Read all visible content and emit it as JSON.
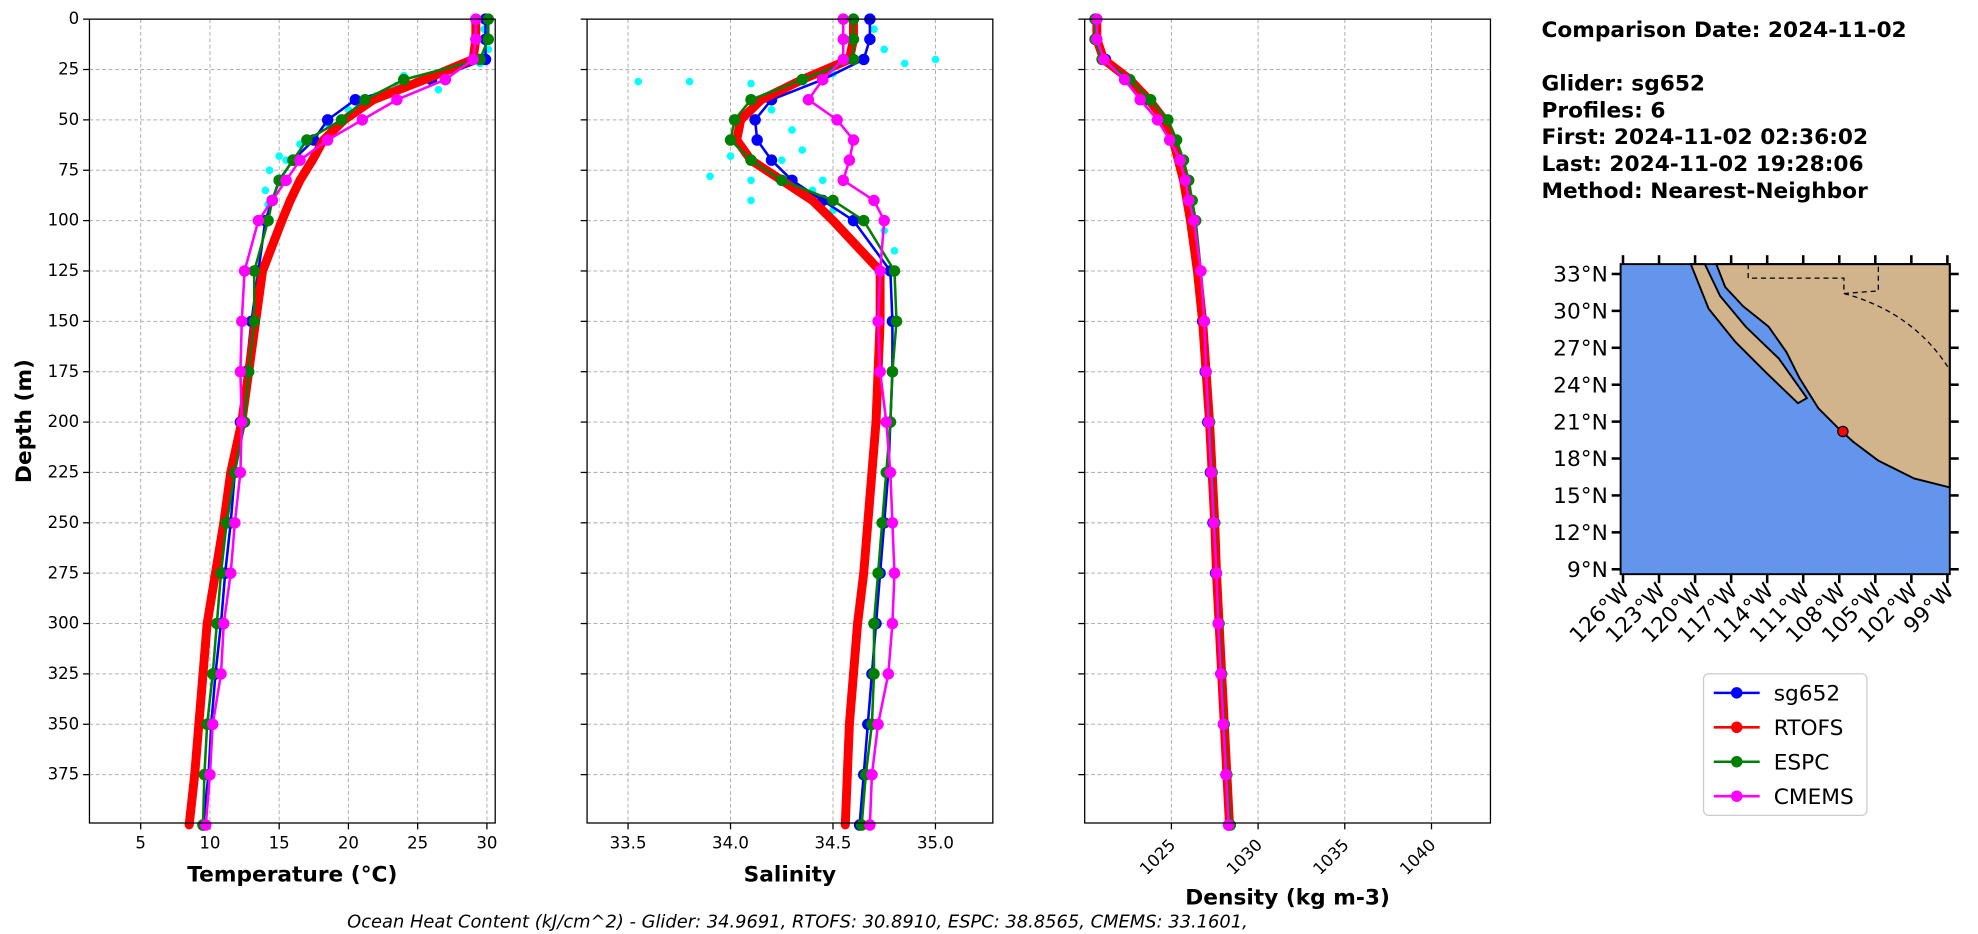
{
  "chart_data": [
    {
      "type": "line",
      "xlabel": "Temperature (°C)",
      "ylabel": "Depth (m)",
      "y": [
        0,
        10,
        20,
        30,
        40,
        50,
        60,
        70,
        80,
        90,
        100,
        125,
        150,
        175,
        200,
        225,
        250,
        275,
        300,
        325,
        350,
        375,
        400
      ],
      "xlim": [
        1.3,
        30.6
      ],
      "xticks": [
        5,
        10,
        15,
        20,
        25,
        30
      ],
      "ylim": [
        0,
        399
      ],
      "yticks": [
        0,
        25,
        50,
        75,
        100,
        125,
        150,
        175,
        200,
        225,
        250,
        275,
        300,
        325,
        350,
        375
      ],
      "grid": true,
      "scatter": {
        "color": "#00ffff",
        "x": [
          29.8,
          30.1,
          29.5,
          27,
          25,
          23.5,
          22,
          20,
          18.5,
          16.5,
          15,
          14.3,
          14,
          14.2,
          15.5,
          24,
          26.5,
          21
        ],
        "y": [
          5,
          15,
          22,
          27,
          30,
          33,
          38,
          45,
          52,
          62,
          68,
          75,
          85,
          92,
          70,
          28,
          35,
          40
        ]
      },
      "series": [
        {
          "name": "sg652",
          "color": "#0000ff",
          "linewidth": 2,
          "values": [
            29.9,
            29.9,
            29.9,
            26,
            20.5,
            18.5,
            17.5,
            16,
            15,
            14.5,
            14,
            13.5,
            13,
            12.6,
            12.2,
            11.8,
            11.5,
            11.1,
            10.8,
            10.4,
            10.1,
            9.9,
            9.5
          ]
        },
        {
          "name": "RTOFS",
          "color": "#ff0000",
          "linewidth": 7,
          "values": [
            29.2,
            29.2,
            29,
            25.5,
            21.8,
            19.7,
            18.2,
            17.4,
            16.5,
            15.8,
            15.2,
            13.8,
            13.3,
            12.8,
            12.3,
            11.5,
            11,
            10.4,
            9.8,
            9.5,
            9.2,
            8.9,
            8.5
          ]
        },
        {
          "name": "ESPC",
          "color": "#008000",
          "linewidth": 2,
          "values": [
            30.1,
            30.1,
            29.5,
            24,
            21.2,
            19.5,
            17,
            16,
            15,
            14.5,
            14.2,
            13.2,
            13.2,
            12.8,
            12.5,
            11.8,
            11.2,
            10.8,
            10.5,
            10.2,
            9.8,
            9.6,
            9.5
          ]
        },
        {
          "name": "CMEMS",
          "color": "#ff00ff",
          "linewidth": 2,
          "values": [
            29.2,
            29.2,
            29,
            27,
            23.5,
            21,
            18.5,
            16.5,
            15.5,
            14.5,
            13.5,
            12.5,
            12.3,
            12.2,
            12.3,
            12.2,
            11.8,
            11.5,
            11,
            10.8,
            10.2,
            10,
            9.7
          ]
        }
      ]
    },
    {
      "type": "line",
      "xlabel": "Salinity",
      "y": [
        0,
        10,
        20,
        30,
        40,
        50,
        60,
        70,
        80,
        90,
        100,
        125,
        150,
        175,
        200,
        225,
        250,
        275,
        300,
        325,
        350,
        375,
        400
      ],
      "xlim": [
        33.3,
        35.28
      ],
      "xticks": [
        33.5,
        {
          "value": 34,
          "label": "34.0"
        },
        34.5,
        {
          "value": 35,
          "label": "35.0"
        }
      ],
      "ylim": [
        0,
        399
      ],
      "grid": true,
      "scatter": {
        "color": "#00ffff",
        "x": [
          34.7,
          34.75,
          35.0,
          34.85,
          34.5,
          33.8,
          33.55,
          34.1,
          34.2,
          34.3,
          34.35,
          34.0,
          33.9,
          34.1,
          34.4,
          34.1,
          34.5,
          34.75,
          34.8,
          34.8,
          34.25,
          34.45
        ],
        "y": [
          5,
          15,
          20,
          22,
          27,
          31,
          31,
          32,
          45,
          55,
          65,
          68,
          78,
          80,
          85,
          90,
          95,
          105,
          115,
          125,
          70,
          80
        ]
      },
      "series": [
        {
          "color": "#0000ff",
          "linewidth": 2,
          "values": [
            34.68,
            34.68,
            34.65,
            34.45,
            34.2,
            34.12,
            34.13,
            34.2,
            34.3,
            34.45,
            34.6,
            34.78,
            34.79,
            34.79,
            34.78,
            34.77,
            34.75,
            34.73,
            34.71,
            34.69,
            34.67,
            34.65,
            34.63
          ]
        },
        {
          "color": "#ff0000",
          "linewidth": 7,
          "values": [
            34.6,
            34.6,
            34.58,
            34.35,
            34.15,
            34.05,
            34.03,
            34.1,
            34.25,
            34.4,
            34.5,
            34.73,
            34.73,
            34.72,
            34.71,
            34.69,
            34.67,
            34.65,
            34.62,
            34.6,
            34.58,
            34.57,
            34.56
          ]
        },
        {
          "color": "#008000",
          "linewidth": 2,
          "values": [
            34.6,
            34.6,
            34.6,
            34.35,
            34.1,
            34.02,
            34.0,
            34.1,
            34.25,
            34.5,
            34.65,
            34.8,
            34.81,
            34.79,
            34.78,
            34.76,
            34.74,
            34.72,
            34.7,
            34.7,
            34.69,
            34.66,
            34.64
          ]
        },
        {
          "color": "#ff00ff",
          "linewidth": 2,
          "values": [
            34.55,
            34.55,
            34.55,
            34.45,
            34.38,
            34.52,
            34.6,
            34.58,
            34.55,
            34.7,
            34.75,
            34.73,
            34.72,
            34.73,
            34.76,
            34.78,
            34.79,
            34.8,
            34.79,
            34.77,
            34.72,
            34.69,
            34.68
          ]
        }
      ]
    },
    {
      "type": "line",
      "xlabel": "Density (kg m-3)",
      "y": [
        0,
        10,
        20,
        30,
        40,
        50,
        60,
        70,
        80,
        90,
        100,
        125,
        150,
        175,
        200,
        225,
        250,
        275,
        300,
        325,
        350,
        375,
        400
      ],
      "xlim": [
        1020,
        1043.4
      ],
      "xticks": [
        1025,
        1030,
        1035,
        1040
      ],
      "ylim": [
        0,
        399
      ],
      "grid": true,
      "series": [
        {
          "color": "#0000ff",
          "linewidth": 2,
          "values": [
            1020.6,
            1020.6,
            1021.2,
            1022.5,
            1023.5,
            1024.5,
            1025,
            1025.5,
            1025.8,
            1026.1,
            1026.3,
            1026.6,
            1026.8,
            1026.95,
            1027.1,
            1027.25,
            1027.4,
            1027.55,
            1027.7,
            1027.85,
            1028,
            1028.15,
            1028.3
          ]
        },
        {
          "color": "#ff0000",
          "linewidth": 7,
          "values": [
            1020.7,
            1020.7,
            1021.1,
            1022.6,
            1023.7,
            1024.6,
            1025.1,
            1025.4,
            1025.7,
            1025.9,
            1026.1,
            1026.5,
            1026.8,
            1027,
            1027.2,
            1027.35,
            1027.5,
            1027.6,
            1027.75,
            1027.9,
            1028.05,
            1028.2,
            1028.35
          ]
        },
        {
          "color": "#008000",
          "linewidth": 2,
          "values": [
            1020.6,
            1020.6,
            1021,
            1022.6,
            1023.8,
            1024.8,
            1025.3,
            1025.7,
            1026,
            1026.2,
            1026.4,
            1026.7,
            1026.9,
            1027,
            1027.2,
            1027.35,
            1027.5,
            1027.6,
            1027.75,
            1027.9,
            1028.05,
            1028.2,
            1028.4
          ]
        },
        {
          "color": "#ff00ff",
          "linewidth": 2,
          "values": [
            1020.7,
            1020.7,
            1021.1,
            1022.3,
            1023.2,
            1024.2,
            1024.9,
            1025.5,
            1025.8,
            1026,
            1026.3,
            1026.7,
            1026.9,
            1027,
            1027.15,
            1027.3,
            1027.45,
            1027.6,
            1027.7,
            1027.85,
            1028,
            1028.15,
            1028.3
          ]
        }
      ]
    },
    {
      "type": "map",
      "xlim": [
        -126.2,
        -98.8
      ],
      "ylim": [
        8.6,
        33.8
      ],
      "xticks": [
        {
          "value": -126,
          "label": "126°W"
        },
        {
          "value": -123,
          "label": "123°W"
        },
        {
          "value": -120,
          "label": "120°W"
        },
        {
          "value": -117,
          "label": "117°W"
        },
        {
          "value": -114,
          "label": "114°W"
        },
        {
          "value": -111,
          "label": "111°W"
        },
        {
          "value": -108,
          "label": "108°W"
        },
        {
          "value": -105,
          "label": "105°W"
        },
        {
          "value": -102,
          "label": "102°W"
        },
        {
          "value": -99,
          "label": "99°W"
        }
      ],
      "yticks": [
        {
          "value": 9,
          "label": "9°N"
        },
        {
          "value": 12,
          "label": "12°N"
        },
        {
          "value": 15,
          "label": "15°N"
        },
        {
          "value": 18,
          "label": "18°N"
        },
        {
          "value": 21,
          "label": "21°N"
        },
        {
          "value": 24,
          "label": "24°N"
        },
        {
          "value": 27,
          "label": "27°N"
        },
        {
          "value": 30,
          "label": "30°N"
        },
        {
          "value": 33,
          "label": "33°N"
        }
      ],
      "points": {
        "color": "#ff0000",
        "lon": [
          -107.7
        ],
        "lat": [
          20.2
        ]
      }
    }
  ],
  "info": [
    "Comparison Date: 2024-11-02",
    "Glider: sg652",
    "Profiles: 6",
    "First: 2024-11-02 02:36:02",
    "Last: 2024-11-02 19:28:06",
    "Method: Nearest-Neighbor"
  ],
  "footer": "Ocean Heat Content (kJ/cm^2) - Glider: 34.9691,  RTOFS: 30.8910,  ESPC: 38.8565,  CMEMS: 33.1601,"
}
